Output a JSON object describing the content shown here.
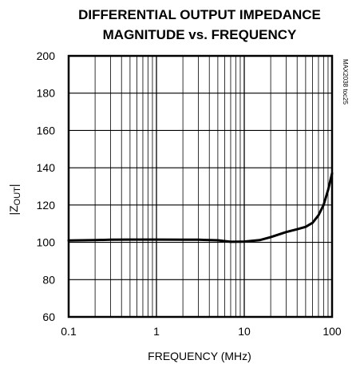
{
  "chart_data": {
    "type": "line",
    "title": [
      "DIFFERENTIAL OUTPUT IMPEDANCE",
      "MAGNITUDE vs. FREQUENCY"
    ],
    "xlabel": "FREQUENCY (MHz)",
    "ylabel_main": "|Z",
    "ylabel_sub": "OUT",
    "ylabel_end": "|",
    "x_scale": "log",
    "xlim": [
      0.1,
      100
    ],
    "ylim": [
      60,
      200
    ],
    "x_ticks": [
      {
        "value": 0.1,
        "label": "0.1"
      },
      {
        "value": 1,
        "label": "1"
      },
      {
        "value": 10,
        "label": "10"
      },
      {
        "value": 100,
        "label": "100"
      }
    ],
    "y_ticks": [
      {
        "value": 60,
        "label": "60"
      },
      {
        "value": 80,
        "label": "80"
      },
      {
        "value": 100,
        "label": "100"
      },
      {
        "value": 120,
        "label": "120"
      },
      {
        "value": 140,
        "label": "140"
      },
      {
        "value": 160,
        "label": "160"
      },
      {
        "value": 180,
        "label": "180"
      },
      {
        "value": 200,
        "label": "200"
      }
    ],
    "grid": true,
    "watermark": "MAX2038 toc25",
    "series": [
      {
        "x": [
          0.1,
          0.2,
          0.3,
          0.5,
          1,
          2,
          3,
          5,
          7,
          10,
          15,
          20,
          30,
          40,
          50,
          60,
          70,
          80,
          90,
          100
        ],
        "y": [
          101,
          101.2,
          101.4,
          101.5,
          101.5,
          101.4,
          101.4,
          101.1,
          100.3,
          100.4,
          101.2,
          102.8,
          105.5,
          107,
          108.3,
          110.5,
          114.5,
          120,
          128,
          137
        ]
      }
    ],
    "line_color": "#000000"
  }
}
